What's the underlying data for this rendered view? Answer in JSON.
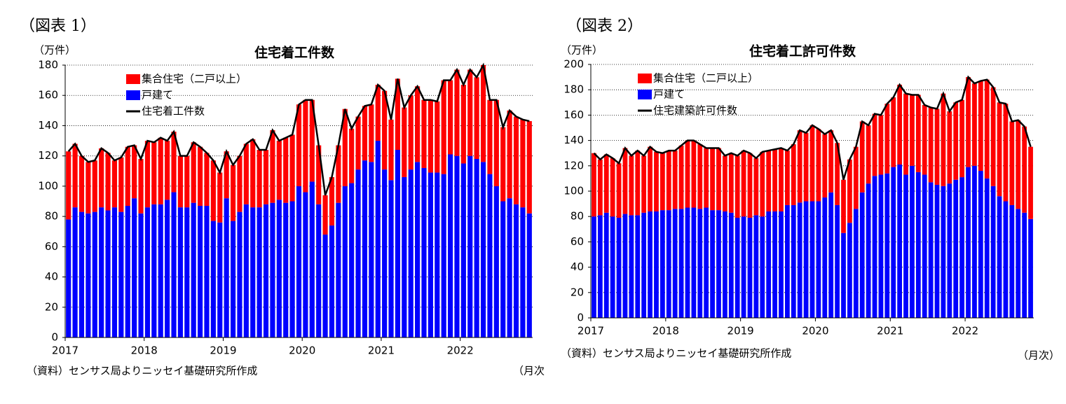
{
  "chart_data": [
    {
      "type": "bar",
      "figure_label": "（図表 1）",
      "title": "住宅着工件数",
      "y_label": "（万件）",
      "source": "（資料）センサス局よりニッセイ基礎研究所作成",
      "x_unit": "（月次",
      "categories": [
        "2017",
        null,
        null,
        null,
        null,
        null,
        null,
        null,
        null,
        null,
        null,
        null,
        "2018",
        null,
        null,
        null,
        null,
        null,
        null,
        null,
        null,
        null,
        null,
        null,
        "2019",
        null,
        null,
        null,
        null,
        null,
        null,
        null,
        null,
        null,
        null,
        null,
        "2020",
        null,
        null,
        null,
        null,
        null,
        null,
        null,
        null,
        null,
        null,
        null,
        "2021",
        null,
        null,
        null,
        null,
        null,
        null,
        null,
        null,
        null,
        null,
        null,
        "2022",
        null,
        null,
        null,
        null,
        null,
        null,
        null,
        null,
        null,
        null
      ],
      "ylim": [
        0,
        180
      ],
      "yticks": [
        0,
        20,
        40,
        60,
        80,
        100,
        120,
        140,
        160,
        180
      ],
      "grid": true,
      "series": [
        {
          "name": "集合住宅（二戸以上）",
          "color": "#ff0000",
          "stack": true,
          "values": [
            45,
            42,
            37,
            34,
            34,
            39,
            38,
            31,
            36,
            39,
            35,
            36,
            44,
            41,
            44,
            39,
            40,
            34,
            34,
            40,
            39,
            35,
            40,
            33,
            31,
            37,
            37,
            40,
            45,
            38,
            36,
            48,
            39,
            43,
            44,
            54,
            61,
            54,
            39,
            26,
            32,
            38,
            51,
            36,
            35,
            36,
            38,
            37,
            52,
            40,
            47,
            46,
            49,
            50,
            45,
            48,
            47,
            62,
            49,
            57,
            52,
            57,
            54,
            64,
            49,
            57,
            49,
            58,
            58,
            58,
            61
          ]
        },
        {
          "name": "戸建て",
          "color": "#0000ff",
          "stack": true,
          "values": [
            78,
            86,
            83,
            82,
            83,
            86,
            84,
            86,
            83,
            87,
            92,
            82,
            86,
            88,
            88,
            91,
            96,
            86,
            86,
            89,
            87,
            87,
            77,
            76,
            92,
            77,
            83,
            88,
            86,
            86,
            88,
            89,
            91,
            89,
            90,
            100,
            96,
            103,
            88,
            68,
            74,
            89,
            100,
            102,
            111,
            117,
            116,
            130,
            111,
            104,
            124,
            106,
            111,
            116,
            112,
            109,
            109,
            108,
            121,
            120,
            115,
            120,
            118,
            116,
            108,
            100,
            90,
            92,
            88,
            86,
            82
          ]
        },
        {
          "name": "住宅着工件数",
          "color": "#000000",
          "kind": "line",
          "values": [
            123,
            128,
            120,
            116,
            117,
            125,
            122,
            117,
            119,
            126,
            127,
            118,
            130,
            129,
            132,
            130,
            136,
            120,
            120,
            129,
            126,
            122,
            117,
            109,
            123,
            114,
            120,
            128,
            131,
            124,
            124,
            137,
            130,
            132,
            134,
            154,
            157,
            157,
            127,
            94,
            106,
            127,
            151,
            138,
            146,
            153,
            154,
            167,
            163,
            144,
            171,
            152,
            160,
            166,
            157,
            157,
            156,
            170,
            170,
            177,
            167,
            177,
            172,
            180,
            157,
            157,
            139,
            150,
            146,
            144,
            143
          ]
        }
      ]
    },
    {
      "type": "bar",
      "figure_label": "（図表 2）",
      "title": "住宅着工許可件数",
      "y_label": "（万件）",
      "source": "（資料）センサス局よりニッセイ基礎研究所作成",
      "x_unit": "（月次）",
      "categories": [
        "2017",
        null,
        null,
        null,
        null,
        null,
        null,
        null,
        null,
        null,
        null,
        null,
        "2018",
        null,
        null,
        null,
        null,
        null,
        null,
        null,
        null,
        null,
        null,
        null,
        "2019",
        null,
        null,
        null,
        null,
        null,
        null,
        null,
        null,
        null,
        null,
        null,
        "2020",
        null,
        null,
        null,
        null,
        null,
        null,
        null,
        null,
        null,
        null,
        null,
        "2021",
        null,
        null,
        null,
        null,
        null,
        null,
        null,
        null,
        null,
        null,
        null,
        "2022",
        null,
        null,
        null,
        null,
        null,
        null,
        null,
        null,
        null,
        null
      ],
      "ylim": [
        0,
        200
      ],
      "yticks": [
        0,
        20,
        40,
        60,
        80,
        100,
        120,
        140,
        160,
        180,
        200
      ],
      "grid": true,
      "series": [
        {
          "name": "集合住宅（二戸以上）",
          "color": "#ff0000",
          "stack": true,
          "values": [
            50,
            44,
            46,
            46,
            43,
            52,
            47,
            51,
            45,
            51,
            47,
            45,
            47,
            46,
            50,
            53,
            53,
            51,
            47,
            49,
            49,
            44,
            47,
            49,
            52,
            51,
            45,
            51,
            48,
            49,
            50,
            43,
            48,
            57,
            54,
            60,
            57,
            50,
            49,
            49,
            42,
            50,
            49,
            56,
            46,
            49,
            47,
            55,
            55,
            63,
            64,
            56,
            61,
            55,
            59,
            60,
            73,
            57,
            61,
            61,
            71,
            65,
            71,
            78,
            78,
            74,
            77,
            66,
            70,
            68,
            57
          ]
        },
        {
          "name": "戸建て",
          "color": "#0000ff",
          "stack": true,
          "values": [
            80,
            81,
            83,
            80,
            79,
            82,
            81,
            81,
            83,
            84,
            84,
            85,
            85,
            86,
            86,
            87,
            87,
            86,
            87,
            85,
            85,
            84,
            83,
            79,
            80,
            79,
            81,
            80,
            84,
            84,
            84,
            89,
            89,
            91,
            92,
            92,
            92,
            95,
            99,
            89,
            67,
            75,
            86,
            99,
            106,
            112,
            113,
            114,
            119,
            121,
            113,
            120,
            115,
            113,
            107,
            105,
            104,
            106,
            109,
            111,
            119,
            120,
            116,
            110,
            104,
            96,
            92,
            89,
            86,
            83,
            78
          ]
        },
        {
          "name": "住宅建築許可件数",
          "color": "#000000",
          "kind": "line",
          "values": [
            130,
            125,
            129,
            126,
            122,
            134,
            128,
            132,
            128,
            135,
            131,
            130,
            132,
            132,
            136,
            140,
            140,
            137,
            134,
            134,
            134,
            128,
            130,
            128,
            132,
            130,
            126,
            131,
            132,
            133,
            134,
            132,
            137,
            148,
            146,
            152,
            149,
            145,
            148,
            138,
            109,
            125,
            135,
            155,
            152,
            161,
            160,
            169,
            174,
            184,
            177,
            176,
            176,
            168,
            166,
            165,
            177,
            163,
            170,
            172,
            190,
            185,
            187,
            188,
            182,
            170,
            169,
            155,
            156,
            151,
            135
          ]
        }
      ]
    }
  ]
}
